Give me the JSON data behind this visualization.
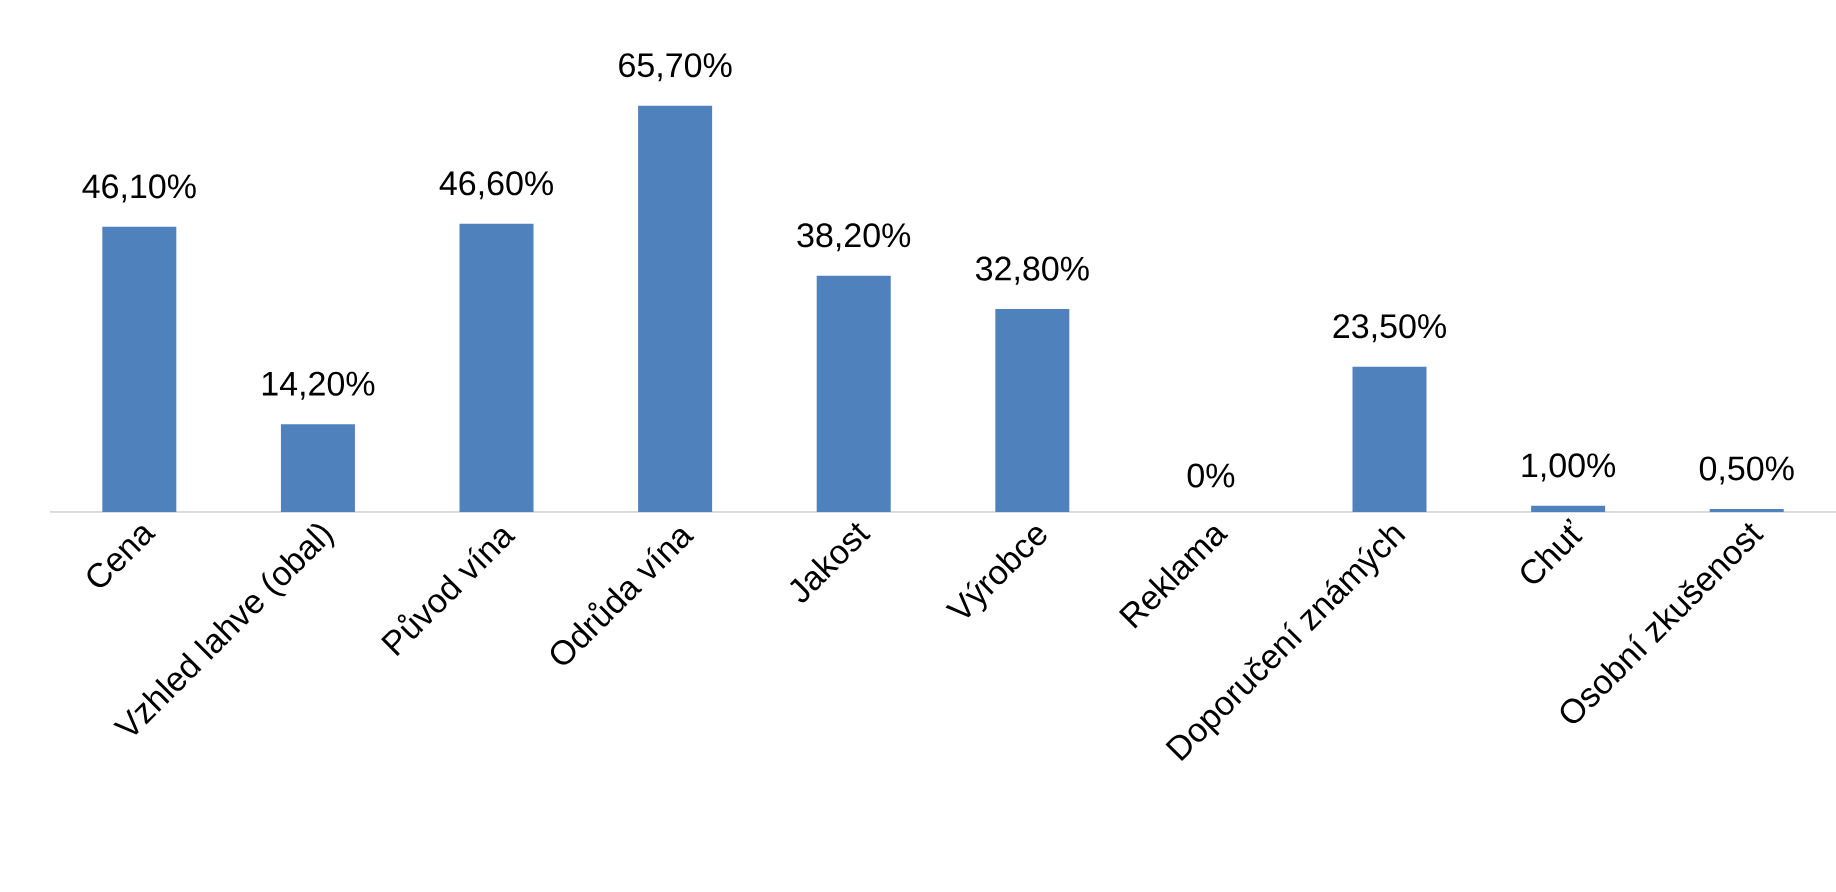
{
  "chart_data": {
    "type": "bar",
    "categories": [
      "Cena",
      "Vzhled lahve (obal)",
      "Původ vína",
      "Odrůda vína",
      "Jakost",
      "Výrobce",
      "Reklama",
      "Doporučení známých",
      "Chuť",
      "Osobní zkušenost"
    ],
    "values": [
      46.1,
      14.2,
      46.6,
      65.7,
      38.2,
      32.8,
      0,
      23.5,
      1.0,
      0.5
    ],
    "value_labels": [
      "46,10%",
      "14,20%",
      "46,60%",
      "65,70%",
      "38,20%",
      "32,80%",
      "0%",
      "23,50%",
      "1,00%",
      "0,50%"
    ],
    "color": "#4f81bd"
  }
}
